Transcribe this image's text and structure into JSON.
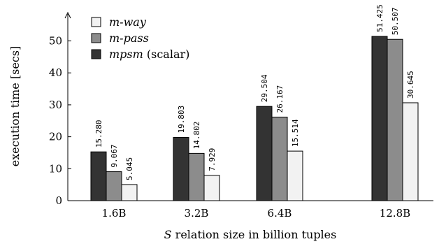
{
  "chart_data": {
    "type": "bar",
    "xlabel_var": "S",
    "xlabel_rest": " relation size in billion tuples",
    "ylabel": "execution time [secs]",
    "categories": [
      "1.6B",
      "3.2B",
      "6.4B",
      "12.8B"
    ],
    "y_ticks": [
      0,
      10,
      20,
      30,
      40,
      50
    ],
    "ylim": [
      0,
      58
    ],
    "grid": false,
    "legend_position": "top-left",
    "series": [
      {
        "name": "mpsm",
        "name_suffix": " (scalar)",
        "color": "#333333",
        "values": [
          15.28,
          19.803,
          29.504,
          51.425
        ],
        "labels": [
          "15.280",
          "19.803",
          "29.504",
          "51.425"
        ]
      },
      {
        "name": "m-pass",
        "name_suffix": "",
        "color": "#8c8c8c",
        "values": [
          9.067,
          14.802,
          26.167,
          50.507
        ],
        "labels": [
          "9.067",
          "14.802",
          "26.167",
          "50.507"
        ]
      },
      {
        "name": "m-way",
        "name_suffix": "",
        "color": "#f2f2f2",
        "values": [
          5.045,
          7.929,
          15.514,
          30.645
        ],
        "labels": [
          "5.045",
          "7.929",
          "15.514",
          "30.645"
        ]
      }
    ],
    "legend_order": [
      2,
      1,
      0
    ]
  }
}
